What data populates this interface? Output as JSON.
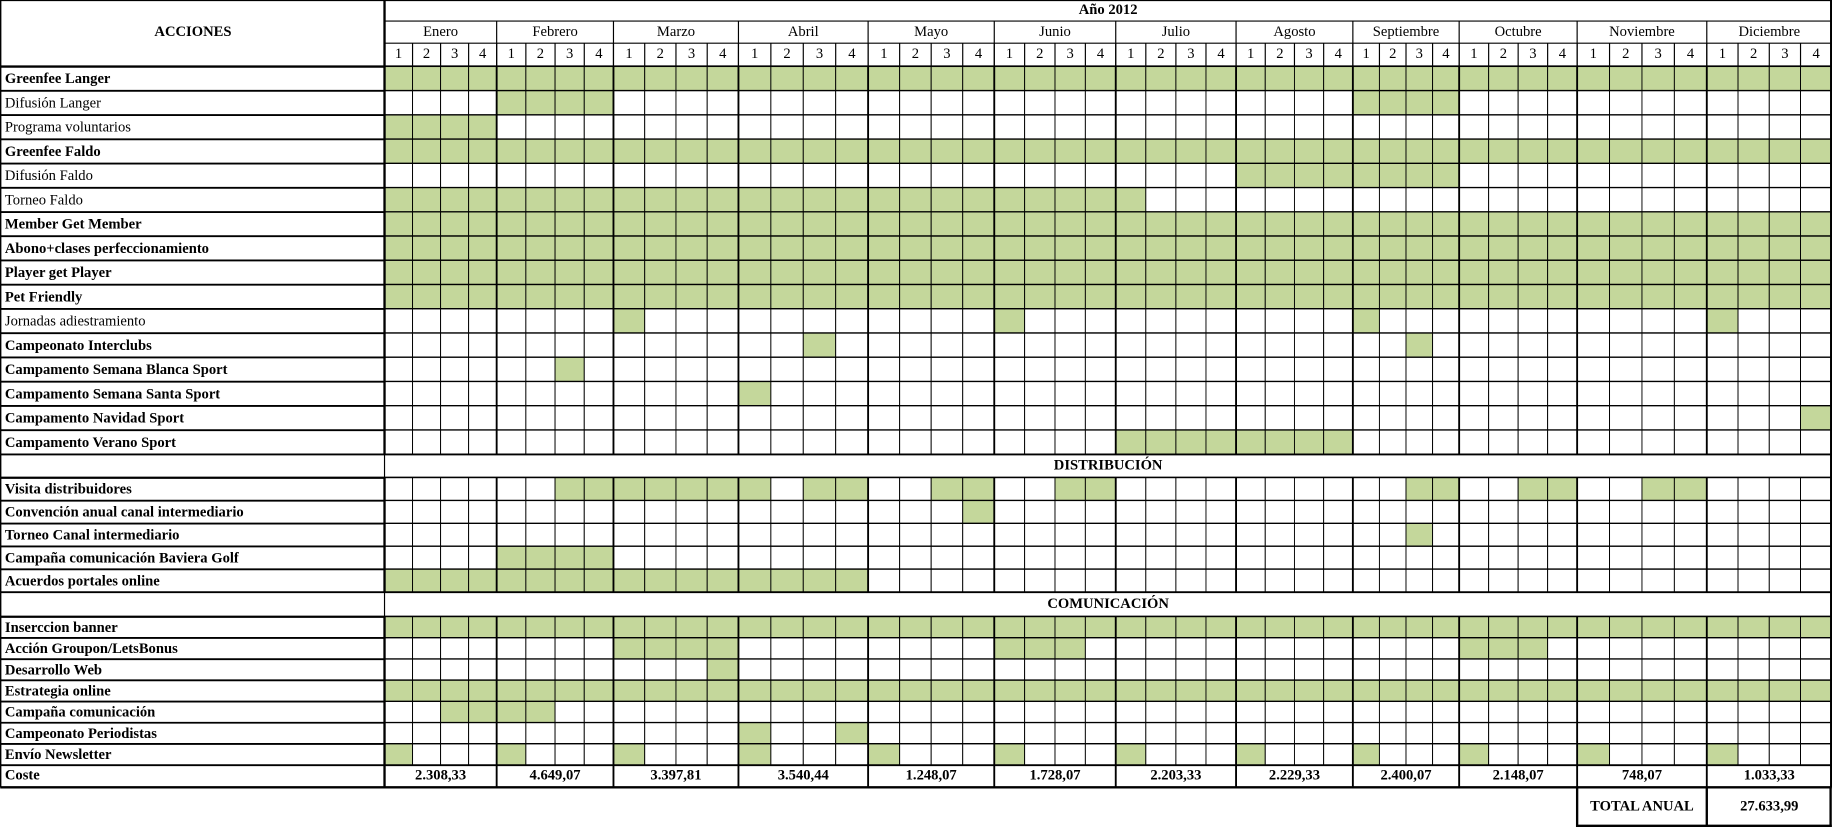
{
  "header": {
    "title": "ACCIONES",
    "year": "Año 2012",
    "months": [
      "Enero",
      "Febrero",
      "Marzo",
      "Abril",
      "Mayo",
      "Junio",
      "Julio",
      "Agosto",
      "Septiembre",
      "Octubre",
      "Noviembre",
      "Diciembre"
    ],
    "weeks": [
      "1",
      "2",
      "3",
      "4"
    ]
  },
  "groups": [
    {
      "rows": [
        {
          "label": "Greenfee Langer",
          "bold": true,
          "weeks": [
            0,
            1,
            2,
            3,
            4,
            5,
            6,
            7,
            8,
            9,
            10,
            11,
            12,
            13,
            14,
            15,
            16,
            17,
            18,
            19,
            20,
            21,
            22,
            23,
            24,
            25,
            26,
            27,
            28,
            29,
            30,
            31,
            32,
            33,
            34,
            35,
            36,
            37,
            38,
            39,
            40,
            41,
            42,
            43,
            44,
            45,
            46,
            47
          ]
        },
        {
          "label": "Difusión Langer",
          "bold": false,
          "weeks": [
            4,
            5,
            6,
            7,
            32,
            33,
            34,
            35
          ]
        },
        {
          "label": "Programa voluntarios",
          "bold": false,
          "weeks": [
            0,
            1,
            2,
            3
          ]
        },
        {
          "label": "Greenfee Faldo",
          "bold": true,
          "weeks": [
            0,
            1,
            2,
            3,
            4,
            5,
            6,
            7,
            8,
            9,
            10,
            11,
            12,
            13,
            14,
            15,
            16,
            17,
            18,
            19,
            20,
            21,
            22,
            23,
            24,
            25,
            26,
            27,
            28,
            29,
            30,
            31,
            32,
            33,
            34,
            35,
            36,
            37,
            38,
            39,
            40,
            41,
            42,
            43,
            44,
            45,
            46,
            47
          ]
        },
        {
          "label": "Difusión Faldo",
          "bold": false,
          "weeks": [
            28,
            29,
            30,
            31,
            32,
            33,
            34,
            35
          ]
        },
        {
          "label": "Torneo Faldo",
          "bold": false,
          "weeks": [
            0,
            1,
            2,
            3,
            4,
            5,
            6,
            7,
            8,
            9,
            10,
            11,
            12,
            13,
            14,
            15,
            16,
            17,
            18,
            19,
            20,
            21,
            22,
            23,
            24
          ]
        },
        {
          "label": "Member Get Member",
          "bold": true,
          "weeks": [
            0,
            1,
            2,
            3,
            4,
            5,
            6,
            7,
            8,
            9,
            10,
            11,
            12,
            13,
            14,
            15,
            16,
            17,
            18,
            19,
            20,
            21,
            22,
            23,
            24,
            25,
            26,
            27,
            28,
            29,
            30,
            31,
            32,
            33,
            34,
            35,
            36,
            37,
            38,
            39,
            40,
            41,
            42,
            43,
            44,
            45,
            46,
            47
          ]
        },
        {
          "label": "Abono+clases perfeccionamiento",
          "bold": true,
          "weeks": [
            0,
            1,
            2,
            3,
            4,
            5,
            6,
            7,
            8,
            9,
            10,
            11,
            12,
            13,
            14,
            15,
            16,
            17,
            18,
            19,
            20,
            21,
            22,
            23,
            24,
            25,
            26,
            27,
            28,
            29,
            30,
            31,
            32,
            33,
            34,
            35,
            36,
            37,
            38,
            39,
            40,
            41,
            42,
            43,
            44,
            45,
            46,
            47
          ]
        },
        {
          "label": "Player get Player",
          "bold": true,
          "weeks": [
            0,
            1,
            2,
            3,
            4,
            5,
            6,
            7,
            8,
            9,
            10,
            11,
            12,
            13,
            14,
            15,
            16,
            17,
            18,
            19,
            20,
            21,
            22,
            23,
            24,
            25,
            26,
            27,
            28,
            29,
            30,
            31,
            32,
            33,
            34,
            35,
            36,
            37,
            38,
            39,
            40,
            41,
            42,
            43,
            44,
            45,
            46,
            47
          ]
        },
        {
          "label": "Pet Friendly",
          "bold": true,
          "weeks": [
            0,
            1,
            2,
            3,
            4,
            5,
            6,
            7,
            8,
            9,
            10,
            11,
            12,
            13,
            14,
            15,
            16,
            17,
            18,
            19,
            20,
            21,
            22,
            23,
            24,
            25,
            26,
            27,
            28,
            29,
            30,
            31,
            32,
            33,
            34,
            35,
            36,
            37,
            38,
            39,
            40,
            41,
            42,
            43,
            44,
            45,
            46,
            47
          ]
        },
        {
          "label": "Jornadas adiestramiento",
          "bold": false,
          "weeks": [
            8,
            20,
            32,
            44
          ]
        },
        {
          "label": "Campeonato Interclubs",
          "bold": true,
          "weeks": [
            14,
            34
          ]
        },
        {
          "label": "Campamento Semana Blanca Sport",
          "bold": true,
          "weeks": [
            6
          ]
        },
        {
          "label": "Campamento Semana Santa Sport",
          "bold": true,
          "weeks": [
            12
          ]
        },
        {
          "label": "Campamento Navidad Sport",
          "bold": true,
          "weeks": [
            47
          ]
        },
        {
          "label": "Campamento Verano Sport",
          "bold": true,
          "weeks": [
            24,
            25,
            26,
            27,
            28,
            29,
            30,
            31
          ]
        }
      ]
    },
    {
      "title": "DISTRIBUCIÓN",
      "rows": [
        {
          "label": "Visita distribuidores",
          "bold": true,
          "weeks": [
            6,
            7,
            8,
            9,
            10,
            11,
            12,
            14,
            15,
            18,
            19,
            22,
            23,
            34,
            35,
            38,
            39,
            42,
            43
          ]
        },
        {
          "label": "Convención anual canal intermediario",
          "bold": true,
          "weeks": [
            19
          ]
        },
        {
          "label": "Torneo Canal intermediario",
          "bold": true,
          "weeks": [
            34
          ]
        },
        {
          "label": "Campaña comunicación Baviera Golf",
          "bold": true,
          "weeks": [
            4,
            5,
            6,
            7
          ]
        },
        {
          "label": "Acuerdos portales online",
          "bold": true,
          "weeks": [
            0,
            1,
            2,
            3,
            4,
            5,
            6,
            7,
            8,
            9,
            10,
            11,
            12,
            13,
            14,
            15
          ]
        }
      ]
    },
    {
      "title": "COMUNICACIÓN",
      "rows": [
        {
          "label": "Inserccion banner",
          "bold": true,
          "weeks": [
            0,
            1,
            2,
            3,
            4,
            5,
            6,
            7,
            8,
            9,
            10,
            11,
            12,
            13,
            14,
            15,
            16,
            17,
            18,
            19,
            20,
            21,
            22,
            23,
            24,
            25,
            26,
            27,
            28,
            29,
            30,
            31,
            32,
            33,
            34,
            35,
            36,
            37,
            38,
            39,
            40,
            41,
            42,
            43,
            44,
            45,
            46,
            47
          ]
        },
        {
          "label": "Acción Groupon/LetsBonus",
          "bold": true,
          "weeks": [
            8,
            9,
            10,
            11,
            20,
            21,
            22,
            36,
            37,
            38
          ]
        },
        {
          "label": "Desarrollo Web",
          "bold": true,
          "weeks": [
            11
          ]
        },
        {
          "label": "Estrategia online",
          "bold": true,
          "weeks": [
            0,
            1,
            2,
            3,
            4,
            5,
            6,
            7,
            8,
            9,
            10,
            11,
            12,
            13,
            14,
            15,
            16,
            17,
            18,
            19,
            20,
            21,
            22,
            23,
            24,
            25,
            26,
            27,
            28,
            29,
            30,
            31,
            32,
            33,
            34,
            35,
            36,
            37,
            38,
            39,
            40,
            41,
            42,
            43,
            44,
            45,
            46,
            47
          ]
        },
        {
          "label": "Campaña comunicación",
          "bold": true,
          "weeks": [
            2,
            3,
            4,
            5
          ]
        },
        {
          "label": "Campeonato Periodistas",
          "bold": true,
          "weeks": [
            12,
            15
          ]
        },
        {
          "label": "Envío Newsletter",
          "bold": true,
          "weeks": [
            0,
            4,
            8,
            12,
            16,
            20,
            24,
            28,
            32,
            36,
            40,
            44
          ]
        }
      ]
    }
  ],
  "cost": {
    "label": "Coste",
    "values": [
      "2.308,33",
      "4.649,07",
      "3.397,81",
      "3.540,44",
      "1.248,07",
      "1.728,07",
      "2.203,33",
      "2.229,33",
      "2.400,07",
      "2.148,07",
      "748,07",
      "1.033,33"
    ]
  },
  "total": {
    "label": "TOTAL ANUAL",
    "value": "27.633,99"
  }
}
